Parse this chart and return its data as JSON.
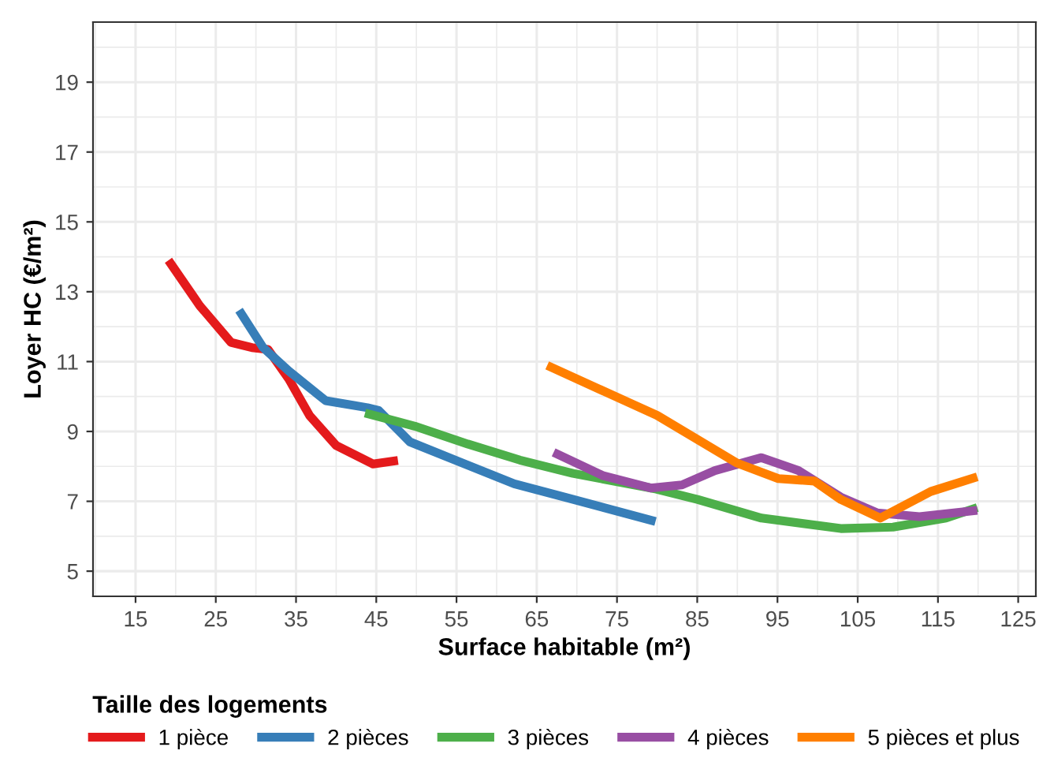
{
  "chart_data": {
    "type": "line",
    "xlabel": "Surface habitable (m²)",
    "ylabel": "Loyer HC (€/m²)",
    "legend_title": "Taille des logements",
    "legend": "bottom",
    "grid": true,
    "line_style": "solid",
    "marker": "none",
    "xlim": [
      9.7,
      127.2
    ],
    "ylim": [
      4.28,
      20.72
    ],
    "xticks": [
      15,
      25,
      35,
      45,
      55,
      65,
      75,
      85,
      95,
      105,
      115,
      125
    ],
    "yticks": [
      5,
      7,
      9,
      11,
      13,
      15,
      17,
      19
    ],
    "series": [
      {
        "name": "1 pièce",
        "color": "#e41a1c",
        "x": [
          19.1,
          23,
          26.9,
          29.5,
          31.5,
          34.1,
          36.7,
          40,
          44.6,
          47.7
        ],
        "values": [
          13.9,
          12.6,
          11.55,
          11.4,
          11.35,
          10.5,
          9.45,
          8.6,
          8.07,
          8.17
        ]
      },
      {
        "name": "2 pièces",
        "color": "#377eb8",
        "x": [
          27.9,
          30.9,
          34.1,
          38.7,
          43.9,
          45.3,
          49.2,
          55.7,
          62.2,
          68.8,
          79.8
        ],
        "values": [
          12.47,
          11.4,
          10.73,
          9.88,
          9.68,
          9.6,
          8.7,
          8.1,
          7.5,
          7.1,
          6.42
        ]
      },
      {
        "name": "3 pièces",
        "color": "#4daf4a",
        "x": [
          43.6,
          49.8,
          56.4,
          62.9,
          69.5,
          79.9,
          85.1,
          93,
          102.9,
          109.4,
          116,
          119.9
        ],
        "values": [
          9.53,
          9.15,
          8.64,
          8.18,
          7.8,
          7.35,
          7.05,
          6.52,
          6.22,
          6.26,
          6.52,
          6.82
        ]
      },
      {
        "name": "4 pièces",
        "color": "#984ea3",
        "x": [
          67.1,
          73.3,
          79.2,
          83.1,
          87.2,
          93,
          97.6,
          102.9,
          107.4,
          112.7,
          119.9
        ],
        "values": [
          8.4,
          7.73,
          7.38,
          7.47,
          7.88,
          8.25,
          7.88,
          7.12,
          6.67,
          6.56,
          6.74
        ]
      },
      {
        "name": "5 pièces et plus",
        "color": "#ff7f00",
        "x": [
          66.3,
          80,
          89.9,
          95.1,
          99.6,
          102.9,
          107.8,
          114.1,
          119.9
        ],
        "values": [
          10.89,
          9.46,
          8.1,
          7.65,
          7.58,
          7.05,
          6.52,
          7.28,
          7.7
        ]
      }
    ]
  }
}
